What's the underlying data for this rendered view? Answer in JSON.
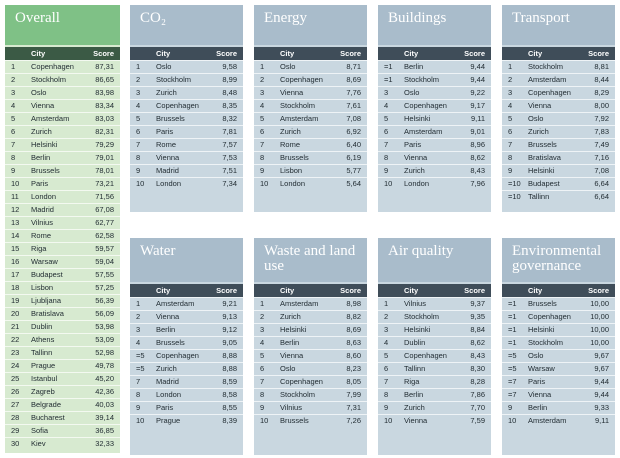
{
  "panels": [
    {
      "title": "Overall",
      "columns": [
        "City",
        "Score"
      ],
      "rows": [
        [
          "1",
          "Copenhagen",
          "87,31"
        ],
        [
          "2",
          "Stockholm",
          "86,65"
        ],
        [
          "3",
          "Oslo",
          "83,98"
        ],
        [
          "4",
          "Vienna",
          "83,34"
        ],
        [
          "5",
          "Amsterdam",
          "83,03"
        ],
        [
          "6",
          "Zurich",
          "82,31"
        ],
        [
          "7",
          "Helsinki",
          "79,29"
        ],
        [
          "8",
          "Berlin",
          "79,01"
        ],
        [
          "9",
          "Brussels",
          "78,01"
        ],
        [
          "10",
          "Paris",
          "73,21"
        ],
        [
          "11",
          "London",
          "71,56"
        ],
        [
          "12",
          "Madrid",
          "67,08"
        ],
        [
          "13",
          "Vilnius",
          "62,77"
        ],
        [
          "14",
          "Rome",
          "62,58"
        ],
        [
          "15",
          "Riga",
          "59,57"
        ],
        [
          "16",
          "Warsaw",
          "59,04"
        ],
        [
          "17",
          "Budapest",
          "57,55"
        ],
        [
          "18",
          "Lisbon",
          "57,25"
        ],
        [
          "19",
          "Ljubljana",
          "56,39"
        ],
        [
          "20",
          "Bratislava",
          "56,09"
        ],
        [
          "21",
          "Dublin",
          "53,98"
        ],
        [
          "22",
          "Athens",
          "53,09"
        ],
        [
          "23",
          "Tallinn",
          "52,98"
        ],
        [
          "24",
          "Prague",
          "49,78"
        ],
        [
          "25",
          "Istanbul",
          "45,20"
        ],
        [
          "26",
          "Zagreb",
          "42,36"
        ],
        [
          "27",
          "Belgrade",
          "40,03"
        ],
        [
          "28",
          "Bucharest",
          "39,14"
        ],
        [
          "29",
          "Sofia",
          "36,85"
        ],
        [
          "30",
          "Kiev",
          "32,33"
        ]
      ]
    },
    {
      "title": "CO₂",
      "columns": [
        "City",
        "Score"
      ],
      "rows": [
        [
          "1",
          "Oslo",
          "9,58"
        ],
        [
          "2",
          "Stockholm",
          "8,99"
        ],
        [
          "3",
          "Zurich",
          "8,48"
        ],
        [
          "4",
          "Copenhagen",
          "8,35"
        ],
        [
          "5",
          "Brussels",
          "8,32"
        ],
        [
          "6",
          "Paris",
          "7,81"
        ],
        [
          "7",
          "Rome",
          "7,57"
        ],
        [
          "8",
          "Vienna",
          "7,53"
        ],
        [
          "9",
          "Madrid",
          "7,51"
        ],
        [
          "10",
          "London",
          "7,34"
        ]
      ]
    },
    {
      "title": "Energy",
      "columns": [
        "City",
        "Score"
      ],
      "rows": [
        [
          "1",
          "Oslo",
          "8,71"
        ],
        [
          "2",
          "Copenhagen",
          "8,69"
        ],
        [
          "3",
          "Vienna",
          "7,76"
        ],
        [
          "4",
          "Stockholm",
          "7,61"
        ],
        [
          "5",
          "Amsterdam",
          "7,08"
        ],
        [
          "6",
          "Zurich",
          "6,92"
        ],
        [
          "7",
          "Rome",
          "6,40"
        ],
        [
          "8",
          "Brussels",
          "6,19"
        ],
        [
          "9",
          "Lisbon",
          "5,77"
        ],
        [
          "10",
          "London",
          "5,64"
        ]
      ]
    },
    {
      "title": "Buildings",
      "columns": [
        "City",
        "Score"
      ],
      "rows": [
        [
          "=1",
          "Berlin",
          "9,44"
        ],
        [
          "=1",
          "Stockholm",
          "9,44"
        ],
        [
          "3",
          "Oslo",
          "9,22"
        ],
        [
          "4",
          "Copenhagen",
          "9,17"
        ],
        [
          "5",
          "Helsinki",
          "9,11"
        ],
        [
          "6",
          "Amsterdam",
          "9,01"
        ],
        [
          "7",
          "Paris",
          "8,96"
        ],
        [
          "8",
          "Vienna",
          "8,62"
        ],
        [
          "9",
          "Zurich",
          "8,43"
        ],
        [
          "10",
          "London",
          "7,96"
        ]
      ]
    },
    {
      "title": "Transport",
      "columns": [
        "City",
        "Score"
      ],
      "rows": [
        [
          "1",
          "Stockholm",
          "8,81"
        ],
        [
          "2",
          "Amsterdam",
          "8,44"
        ],
        [
          "3",
          "Copenhagen",
          "8,29"
        ],
        [
          "4",
          "Vienna",
          "8,00"
        ],
        [
          "5",
          "Oslo",
          "7,92"
        ],
        [
          "6",
          "Zurich",
          "7,83"
        ],
        [
          "7",
          "Brussels",
          "7,49"
        ],
        [
          "8",
          "Bratislava",
          "7,16"
        ],
        [
          "9",
          "Helsinki",
          "7,08"
        ],
        [
          "=10",
          "Budapest",
          "6,64"
        ],
        [
          "=10",
          "Tallinn",
          "6,64"
        ]
      ]
    },
    {
      "title": "Water",
      "columns": [
        "City",
        "Score"
      ],
      "rows": [
        [
          "1",
          "Amsterdam",
          "9,21"
        ],
        [
          "2",
          "Vienna",
          "9,13"
        ],
        [
          "3",
          "Berlin",
          "9,12"
        ],
        [
          "4",
          "Brussels",
          "9,05"
        ],
        [
          "=5",
          "Copenhagen",
          "8,88"
        ],
        [
          "=5",
          "Zurich",
          "8,88"
        ],
        [
          "7",
          "Madrid",
          "8,59"
        ],
        [
          "8",
          "London",
          "8,58"
        ],
        [
          "9",
          "Paris",
          "8,55"
        ],
        [
          "10",
          "Prague",
          "8,39"
        ]
      ]
    },
    {
      "title": "Waste and land use",
      "columns": [
        "City",
        "Score"
      ],
      "rows": [
        [
          "1",
          "Amsterdam",
          "8,98"
        ],
        [
          "2",
          "Zurich",
          "8,82"
        ],
        [
          "3",
          "Helsinki",
          "8,69"
        ],
        [
          "4",
          "Berlin",
          "8,63"
        ],
        [
          "5",
          "Vienna",
          "8,60"
        ],
        [
          "6",
          "Oslo",
          "8,23"
        ],
        [
          "7",
          "Copenhagen",
          "8,05"
        ],
        [
          "8",
          "Stockholm",
          "7,99"
        ],
        [
          "9",
          "Vilnius",
          "7,31"
        ],
        [
          "10",
          "Brussels",
          "7,26"
        ]
      ]
    },
    {
      "title": "Air quality",
      "columns": [
        "City",
        "Score"
      ],
      "rows": [
        [
          "1",
          "Vilnius",
          "9,37"
        ],
        [
          "2",
          "Stockholm",
          "9,35"
        ],
        [
          "3",
          "Helsinki",
          "8,84"
        ],
        [
          "4",
          "Dublin",
          "8,62"
        ],
        [
          "5",
          "Copenhagen",
          "8,43"
        ],
        [
          "6",
          "Tallinn",
          "8,30"
        ],
        [
          "7",
          "Riga",
          "8,28"
        ],
        [
          "8",
          "Berlin",
          "7,86"
        ],
        [
          "9",
          "Zurich",
          "7,70"
        ],
        [
          "10",
          "Vienna",
          "7,59"
        ]
      ]
    },
    {
      "title": "Environmental governance",
      "columns": [
        "City",
        "Score"
      ],
      "rows": [
        [
          "=1",
          "Brussels",
          "10,00"
        ],
        [
          "=1",
          "Copenhagen",
          "10,00"
        ],
        [
          "=1",
          "Helsinki",
          "10,00"
        ],
        [
          "=1",
          "Stockholm",
          "10,00"
        ],
        [
          "=5",
          "Oslo",
          "9,67"
        ],
        [
          "=5",
          "Warsaw",
          "9,67"
        ],
        [
          "=7",
          "Paris",
          "9,44"
        ],
        [
          "=7",
          "Vienna",
          "9,44"
        ],
        [
          "9",
          "Berlin",
          "9,33"
        ],
        [
          "10",
          "Amsterdam",
          "9,11"
        ]
      ]
    }
  ]
}
